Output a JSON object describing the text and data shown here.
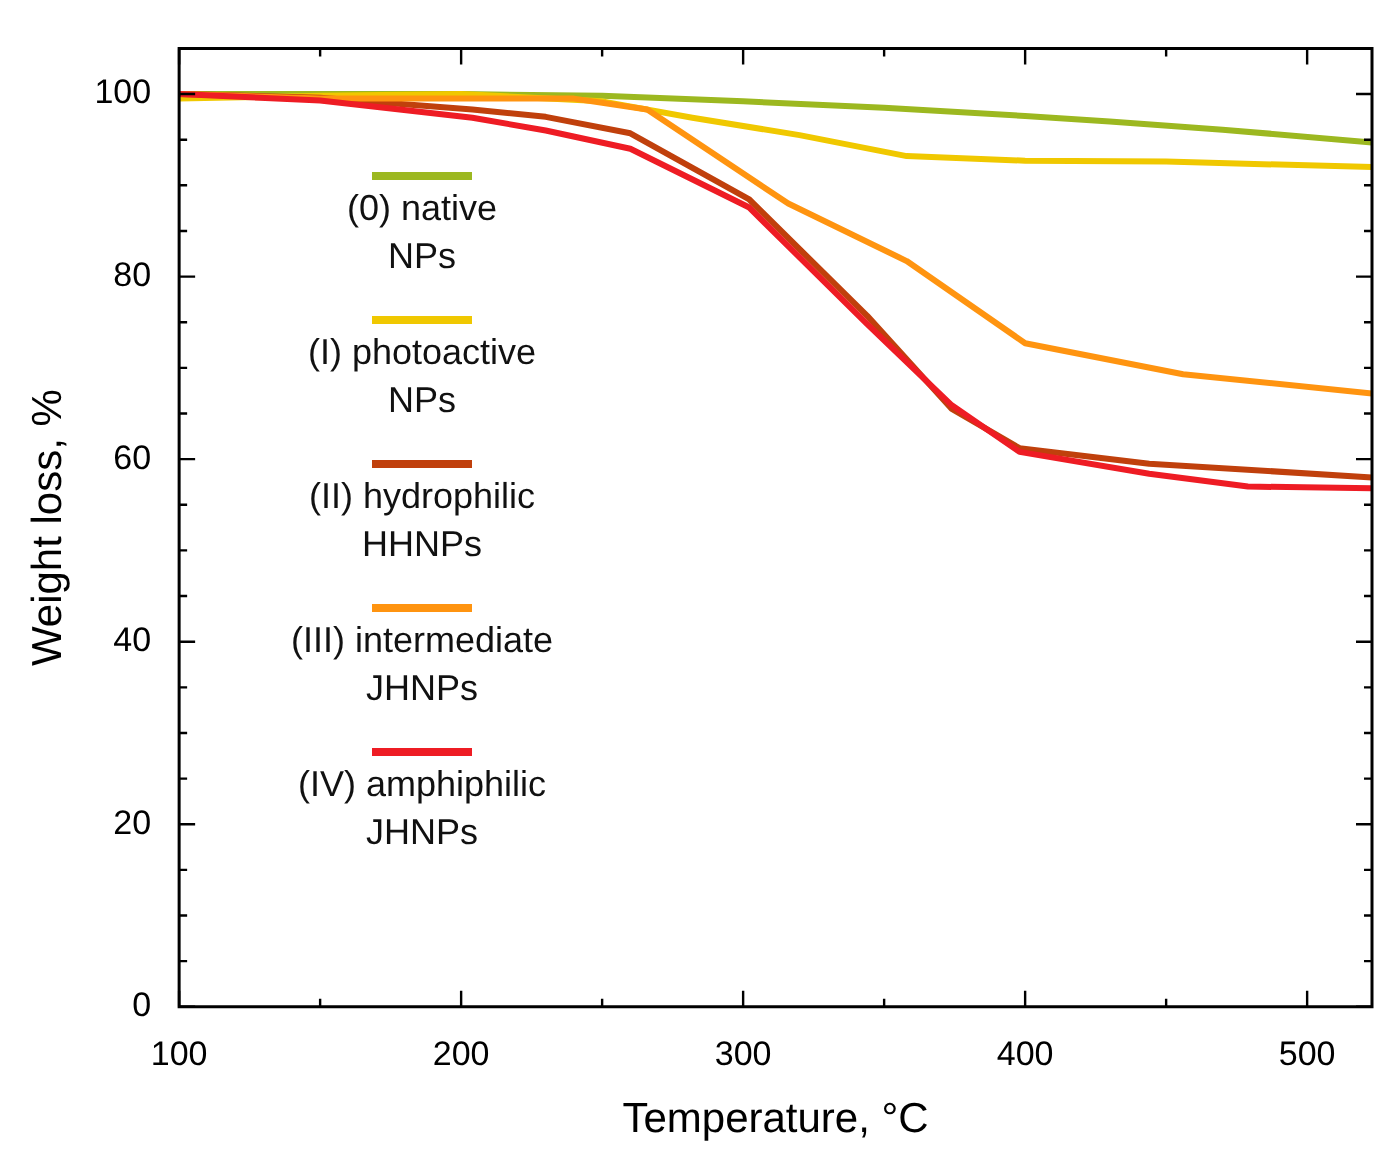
{
  "chart_data": {
    "type": "line",
    "xlabel": "Temperature, °C",
    "ylabel": "Weight loss, %",
    "xlim": [
      100,
      523
    ],
    "ylim": [
      0,
      105
    ],
    "xticks": [
      100,
      {
        "value": 150,
        "label": null
      },
      200,
      {
        "value": 250,
        "label": null
      },
      300,
      {
        "value": 350,
        "label": null
      },
      400,
      {
        "value": 450,
        "label": null
      },
      500
    ],
    "yticks": [
      0,
      {
        "value": 5,
        "label": null
      },
      {
        "value": 10,
        "label": null
      },
      {
        "value": 15,
        "label": null
      },
      20,
      {
        "value": 25,
        "label": null
      },
      {
        "value": 30,
        "label": null
      },
      {
        "value": 35,
        "label": null
      },
      40,
      {
        "value": 45,
        "label": null
      },
      {
        "value": 50,
        "label": null
      },
      {
        "value": 55,
        "label": null
      },
      60,
      {
        "value": 65,
        "label": null
      },
      {
        "value": 70,
        "label": null
      },
      {
        "value": 75,
        "label": null
      },
      80,
      {
        "value": 85,
        "label": null
      },
      {
        "value": 90,
        "label": null
      },
      {
        "value": 95,
        "label": null
      },
      100
    ],
    "legend": "left",
    "marker": "none",
    "line_style": "solid",
    "series": [
      {
        "name": "(0) native NPs",
        "color": "#9cb820",
        "x": [
          100,
          150,
          200,
          250,
          300,
          350,
          400,
          430,
          470,
          523
        ],
        "values": [
          100,
          100,
          100,
          99.8,
          99.2,
          98.5,
          97.6,
          97,
          96.1,
          94.7
        ]
      },
      {
        "name": "(I) photoactive NPs",
        "color": "#f0c800",
        "x": [
          100,
          150,
          200,
          250,
          282,
          320,
          358,
          400,
          450,
          523
        ],
        "values": [
          99.5,
          99.8,
          100,
          99.2,
          97.4,
          95.5,
          93.2,
          92.7,
          92.6,
          92
        ]
      },
      {
        "name": "(II) hydrophilic HHNPs",
        "color": "#c0400c",
        "x": [
          100,
          150,
          204,
          230,
          260,
          302,
          344,
          374,
          398,
          444,
          523
        ],
        "values": [
          100,
          99.6,
          98.3,
          97.5,
          95.7,
          88.5,
          75.7,
          65.5,
          61.2,
          59.5,
          58
        ]
      },
      {
        "name": "(III) intermediate JHNPs",
        "color": "#ff9410",
        "x": [
          100,
          150,
          200,
          240,
          266,
          316,
          358,
          400,
          456,
          523
        ],
        "values": [
          100,
          99.5,
          99.5,
          99.5,
          98.3,
          88,
          81.7,
          72.7,
          69.3,
          67.2
        ]
      },
      {
        "name": "(IV) amphiphilic JHNPs",
        "color": "#ee1c24",
        "x": [
          100,
          150,
          204,
          230,
          260,
          302,
          344,
          374,
          398,
          444,
          479,
          523
        ],
        "values": [
          100,
          99.3,
          97.4,
          96,
          94,
          87.6,
          74.8,
          65.9,
          60.8,
          58.4,
          57,
          56.8
        ]
      }
    ]
  }
}
